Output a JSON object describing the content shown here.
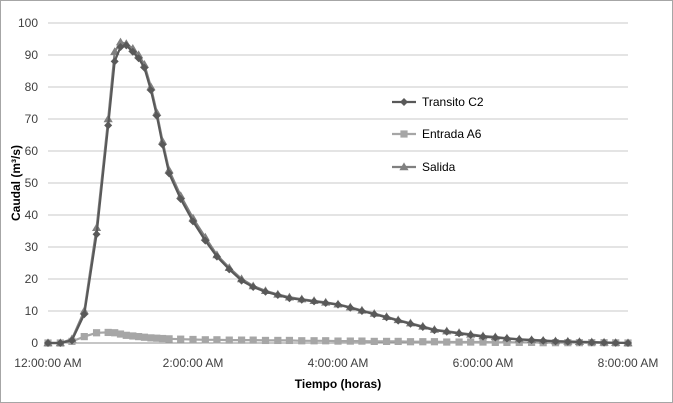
{
  "chart_data": {
    "type": "line",
    "title": "",
    "xlabel": "Tiempo (horas)",
    "ylabel": "Caudal (m³/s)",
    "ylim": [
      0,
      100
    ],
    "xlim": [
      "12:00:00 AM",
      "8:00:00 AM"
    ],
    "xlim_hours": [
      0,
      8
    ],
    "grid": "horizontal",
    "legend_position": "right",
    "y_ticks": [
      "0",
      "10",
      "20",
      "30",
      "40",
      "50",
      "60",
      "70",
      "80",
      "90",
      "100"
    ],
    "x_ticks": [
      "12:00:00 AM",
      "2:00:00 AM",
      "4:00:00 AM",
      "6:00:00 AM",
      "8:00:00 AM"
    ],
    "x_tick_hours": [
      0,
      2,
      4,
      6,
      8
    ],
    "x_hours": [
      0,
      0.17,
      0.33,
      0.5,
      0.67,
      0.83,
      0.92,
      1.0,
      1.08,
      1.17,
      1.25,
      1.33,
      1.42,
      1.5,
      1.58,
      1.67,
      1.83,
      2.0,
      2.17,
      2.33,
      2.5,
      2.67,
      2.83,
      3.0,
      3.17,
      3.33,
      3.5,
      3.67,
      3.83,
      4.0,
      4.17,
      4.33,
      4.5,
      4.67,
      4.83,
      5.0,
      5.17,
      5.33,
      5.5,
      5.67,
      5.83,
      6.0,
      6.17,
      6.33,
      6.5,
      6.67,
      6.83,
      7.0,
      7.17,
      7.33,
      7.5,
      7.67,
      7.83,
      8.0
    ],
    "series": [
      {
        "name": "Transito C2",
        "color": "#595959",
        "marker": "diamond",
        "values": [
          0,
          0,
          0.8,
          9,
          34,
          68,
          88,
          92.5,
          93,
          91,
          89,
          86,
          79,
          71,
          62,
          53,
          45,
          38,
          32,
          27,
          23,
          19.5,
          17.5,
          16,
          15,
          14,
          13.5,
          13,
          12.5,
          12,
          11,
          10,
          9,
          8,
          7,
          6,
          5,
          4,
          3.5,
          3,
          2.5,
          2,
          1.7,
          1.4,
          1.1,
          0.9,
          0.7,
          0.5,
          0.4,
          0.3,
          0.2,
          0.1,
          0.05,
          0
        ]
      },
      {
        "name": "Entrada A6",
        "color": "#a6a6a6",
        "marker": "square",
        "values": [
          0,
          0,
          0.5,
          2,
          3.2,
          3.3,
          3.2,
          2.8,
          2.4,
          2.2,
          2.0,
          1.8,
          1.6,
          1.5,
          1.4,
          1.3,
          1.2,
          1.1,
          1.0,
          1.0,
          0.9,
          0.9,
          0.9,
          0.8,
          0.8,
          0.8,
          0.7,
          0.7,
          0.7,
          0.6,
          0.6,
          0.6,
          0.5,
          0.5,
          0.5,
          0.4,
          0.4,
          0.4,
          0.3,
          0.3,
          0.3,
          0.3,
          0.2,
          0.2,
          0.2,
          0.2,
          0.1,
          0.1,
          0.1,
          0.1,
          0.1,
          0.1,
          0.05,
          0
        ]
      },
      {
        "name": "Salida",
        "color": "#808080",
        "marker": "triangle",
        "values": [
          0,
          0,
          1.2,
          10,
          36,
          70,
          91,
          94,
          93.5,
          92,
          90,
          87,
          80,
          72,
          63,
          54,
          46,
          39,
          33,
          27.5,
          23.5,
          20,
          17.8,
          16.3,
          15.2,
          14.3,
          13.7,
          13.2,
          12.7,
          12.1,
          11.2,
          10.2,
          9.2,
          8.2,
          7.2,
          6.2,
          5.2,
          4.2,
          3.7,
          3.2,
          2.7,
          2.2,
          1.9,
          1.5,
          1.2,
          1.0,
          0.8,
          0.6,
          0.5,
          0.4,
          0.3,
          0.2,
          0.1,
          0
        ]
      }
    ]
  }
}
